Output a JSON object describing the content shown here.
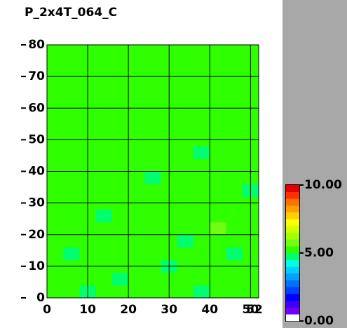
{
  "chart_data": {
    "type": "heatmap",
    "title": "P_2x4T_064_C",
    "xlim": [
      0,
      52
    ],
    "ylim": [
      0,
      80
    ],
    "xticks": [
      0,
      10,
      20,
      30,
      40,
      50,
      52
    ],
    "yticks": [
      0,
      10,
      20,
      30,
      40,
      50,
      60,
      70,
      80
    ],
    "grid": true,
    "zlim": [
      0,
      10
    ],
    "colorbar_ticks": [
      {
        "value": 0,
        "label": "0.00"
      },
      {
        "value": 5,
        "label": "5.00"
      },
      {
        "value": 10,
        "label": "10.00"
      }
    ],
    "colorscale": [
      "#ffffff",
      "#7000ff",
      "#3c00ff",
      "#0000ff",
      "#0040ff",
      "#0070ff",
      "#00a0ff",
      "#00d0ff",
      "#00ffe0",
      "#00ff70",
      "#30ff00",
      "#70ff10",
      "#a0ff00",
      "#d0ff00",
      "#ffff00",
      "#ffd000",
      "#ffa000",
      "#ff7000",
      "#ff3000",
      "#e00000"
    ],
    "z": [
      [
        5.2,
        5.1,
        4.9,
        5.3,
        5.2,
        5.0,
        5.4,
        5.1,
        5.2,
        4.9,
        5.3,
        5.1,
        5.2
      ],
      [
        5.0,
        5.3,
        5.2,
        5.1,
        4.8,
        5.2,
        5.3,
        5.0,
        5.1,
        5.2,
        5.4,
        5.0,
        5.1
      ],
      [
        5.3,
        5.2,
        5.1,
        5.0,
        5.3,
        5.1,
        5.2,
        4.9,
        5.3,
        5.1,
        5.0,
        5.2,
        5.3
      ],
      [
        5.1,
        4.9,
        5.3,
        5.2,
        5.1,
        5.4,
        5.0,
        5.2,
        5.1,
        5.3,
        5.2,
        4.9,
        5.1
      ],
      [
        5.2,
        5.4,
        5.0,
        5.1,
        5.2,
        5.0,
        5.3,
        5.1,
        4.9,
        5.2,
        5.1,
        5.3,
        5.0
      ],
      [
        5.0,
        5.1,
        5.2,
        5.3,
        5.0,
        5.2,
        5.1,
        5.3,
        5.2,
        5.0,
        5.6,
        5.1,
        5.2
      ],
      [
        5.3,
        5.0,
        5.1,
        4.9,
        5.2,
        5.3,
        5.0,
        5.1,
        5.3,
        5.2,
        5.0,
        5.2,
        5.1
      ],
      [
        5.1,
        5.2,
        5.3,
        5.1,
        5.0,
        5.1,
        5.2,
        5.0,
        5.1,
        5.3,
        5.1,
        5.0,
        5.3
      ],
      [
        5.2,
        5.3,
        5.0,
        5.2,
        5.4,
        5.0,
        5.1,
        5.3,
        5.0,
        5.1,
        5.2,
        5.3,
        4.9
      ],
      [
        5.0,
        5.1,
        5.2,
        5.0,
        5.1,
        5.3,
        4.9,
        5.2,
        5.1,
        5.0,
        5.3,
        5.1,
        5.2
      ],
      [
        5.3,
        5.2,
        5.1,
        5.3,
        5.2,
        5.1,
        5.2,
        5.0,
        5.3,
        5.2,
        5.0,
        5.2,
        5.1
      ],
      [
        5.1,
        5.0,
        5.3,
        5.1,
        5.0,
        5.2,
        5.3,
        5.1,
        5.2,
        4.9,
        5.1,
        5.3,
        5.0
      ],
      [
        5.2,
        5.1,
        5.0,
        5.2,
        5.3,
        5.0,
        5.1,
        5.2,
        5.0,
        5.3,
        5.2,
        5.0,
        5.2
      ],
      [
        5.0,
        5.3,
        5.2,
        5.1,
        5.2,
        5.1,
        5.0,
        5.3,
        5.1,
        5.2,
        5.1,
        5.2,
        5.3
      ],
      [
        5.3,
        5.1,
        5.2,
        5.0,
        5.1,
        5.3,
        5.2,
        5.0,
        5.2,
        5.1,
        5.3,
        5.1,
        5.0
      ],
      [
        5.1,
        5.2,
        5.0,
        5.3,
        5.2,
        5.0,
        5.1,
        5.2,
        5.3,
        5.0,
        5.1,
        5.2,
        5.1
      ],
      [
        5.2,
        5.0,
        5.1,
        5.2,
        5.0,
        5.2,
        5.3,
        5.1,
        5.0,
        5.2,
        5.4,
        5.0,
        5.2
      ],
      [
        5.0,
        5.2,
        5.3,
        5.1,
        5.3,
        5.1,
        5.0,
        5.2,
        5.1,
        5.3,
        5.0,
        5.3,
        5.1
      ],
      [
        5.3,
        5.1,
        5.0,
        5.2,
        5.1,
        5.2,
        5.3,
        5.0,
        5.2,
        5.1,
        5.2,
        5.1,
        5.3
      ],
      [
        5.1,
        5.2,
        5.1,
        5.3,
        5.0,
        5.1,
        5.2,
        5.3,
        5.1,
        5.0,
        5.3,
        5.2,
        5.0
      ]
    ]
  }
}
